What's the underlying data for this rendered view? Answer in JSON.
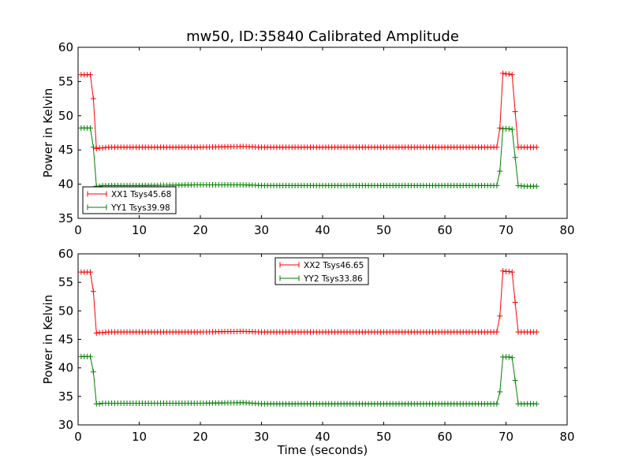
{
  "chart_data": [
    {
      "type": "line",
      "title": "mw50, ID:35840 Calibrated Amplitude",
      "xlabel": "",
      "ylabel": "Power in Kelvin",
      "xlim": [
        0,
        80
      ],
      "ylim": [
        35,
        60
      ],
      "xticks": [
        0,
        10,
        20,
        30,
        40,
        50,
        60,
        70,
        80
      ],
      "yticks": [
        35,
        40,
        45,
        50,
        55,
        60
      ],
      "grid": false,
      "legend": "lower-left",
      "series": [
        {
          "name": "XX1 Tsys45.68",
          "color": "#ff0000",
          "x": [
            0.5,
            1.0,
            1.5,
            2.0,
            2.5,
            3.0,
            3.5,
            4.0,
            5.0,
            10.0,
            20.0,
            27.0,
            30.0,
            40.0,
            50.0,
            60.0,
            68.5,
            69.0,
            69.5,
            70.0,
            70.5,
            71.0,
            71.5,
            72.0,
            73.0,
            74.0,
            75.0
          ],
          "y": [
            56.0,
            56.0,
            56.0,
            56.0,
            52.5,
            45.2,
            45.3,
            45.3,
            45.4,
            45.4,
            45.4,
            45.5,
            45.4,
            45.4,
            45.4,
            45.4,
            45.4,
            48.2,
            56.2,
            56.1,
            56.1,
            56.0,
            50.6,
            45.4,
            45.4,
            45.4,
            45.4
          ]
        },
        {
          "name": "YY1 Tsys39.98",
          "color": "#008000",
          "x": [
            0.5,
            1.0,
            1.5,
            2.0,
            2.5,
            3.0,
            3.5,
            4.0,
            5.0,
            10.0,
            20.0,
            27.0,
            30.0,
            40.0,
            50.0,
            60.0,
            68.5,
            69.0,
            69.5,
            70.0,
            70.5,
            71.0,
            71.5,
            72.0,
            73.0,
            74.0,
            75.0
          ],
          "y": [
            48.2,
            48.2,
            48.2,
            48.2,
            45.4,
            39.7,
            39.7,
            39.8,
            39.8,
            39.8,
            39.9,
            39.9,
            39.8,
            39.8,
            39.8,
            39.8,
            39.8,
            41.9,
            48.1,
            48.1,
            48.1,
            48.0,
            43.9,
            39.8,
            39.7,
            39.7,
            39.7
          ]
        }
      ]
    },
    {
      "type": "line",
      "title": "",
      "xlabel": "Time (seconds)",
      "ylabel": "Power in Kelvin",
      "xlim": [
        0,
        80
      ],
      "ylim": [
        30,
        60
      ],
      "xticks": [
        0,
        10,
        20,
        30,
        40,
        50,
        60,
        70,
        80
      ],
      "yticks": [
        30,
        35,
        40,
        45,
        50,
        55,
        60
      ],
      "grid": false,
      "legend": "upper-center",
      "series": [
        {
          "name": "XX2 Tsys46.65",
          "color": "#ff0000",
          "x": [
            0.5,
            1.0,
            1.5,
            2.0,
            2.5,
            3.0,
            3.5,
            4.0,
            5.0,
            10.0,
            20.0,
            27.0,
            30.0,
            40.0,
            50.0,
            60.0,
            68.5,
            69.0,
            69.5,
            70.0,
            70.5,
            71.0,
            71.5,
            72.0,
            73.0,
            74.0,
            75.0
          ],
          "y": [
            56.8,
            56.8,
            56.8,
            56.8,
            53.4,
            46.1,
            46.2,
            46.2,
            46.3,
            46.3,
            46.3,
            46.4,
            46.3,
            46.3,
            46.3,
            46.3,
            46.3,
            49.1,
            57.0,
            56.9,
            56.9,
            56.8,
            51.5,
            46.3,
            46.3,
            46.3,
            46.3
          ]
        },
        {
          "name": "YY2 Tsys33.86",
          "color": "#008000",
          "x": [
            0.5,
            1.0,
            1.5,
            2.0,
            2.5,
            3.0,
            3.5,
            4.0,
            5.0,
            10.0,
            20.0,
            27.0,
            30.0,
            40.0,
            50.0,
            60.0,
            68.5,
            69.0,
            69.5,
            70.0,
            70.5,
            71.0,
            71.5,
            72.0,
            73.0,
            74.0,
            75.0
          ],
          "y": [
            42.0,
            42.0,
            42.0,
            42.0,
            39.3,
            33.7,
            33.7,
            33.8,
            33.8,
            33.8,
            33.8,
            33.9,
            33.7,
            33.7,
            33.7,
            33.7,
            33.7,
            35.8,
            41.9,
            41.9,
            41.9,
            41.8,
            37.8,
            33.7,
            33.7,
            33.7,
            33.7
          ]
        }
      ]
    }
  ]
}
